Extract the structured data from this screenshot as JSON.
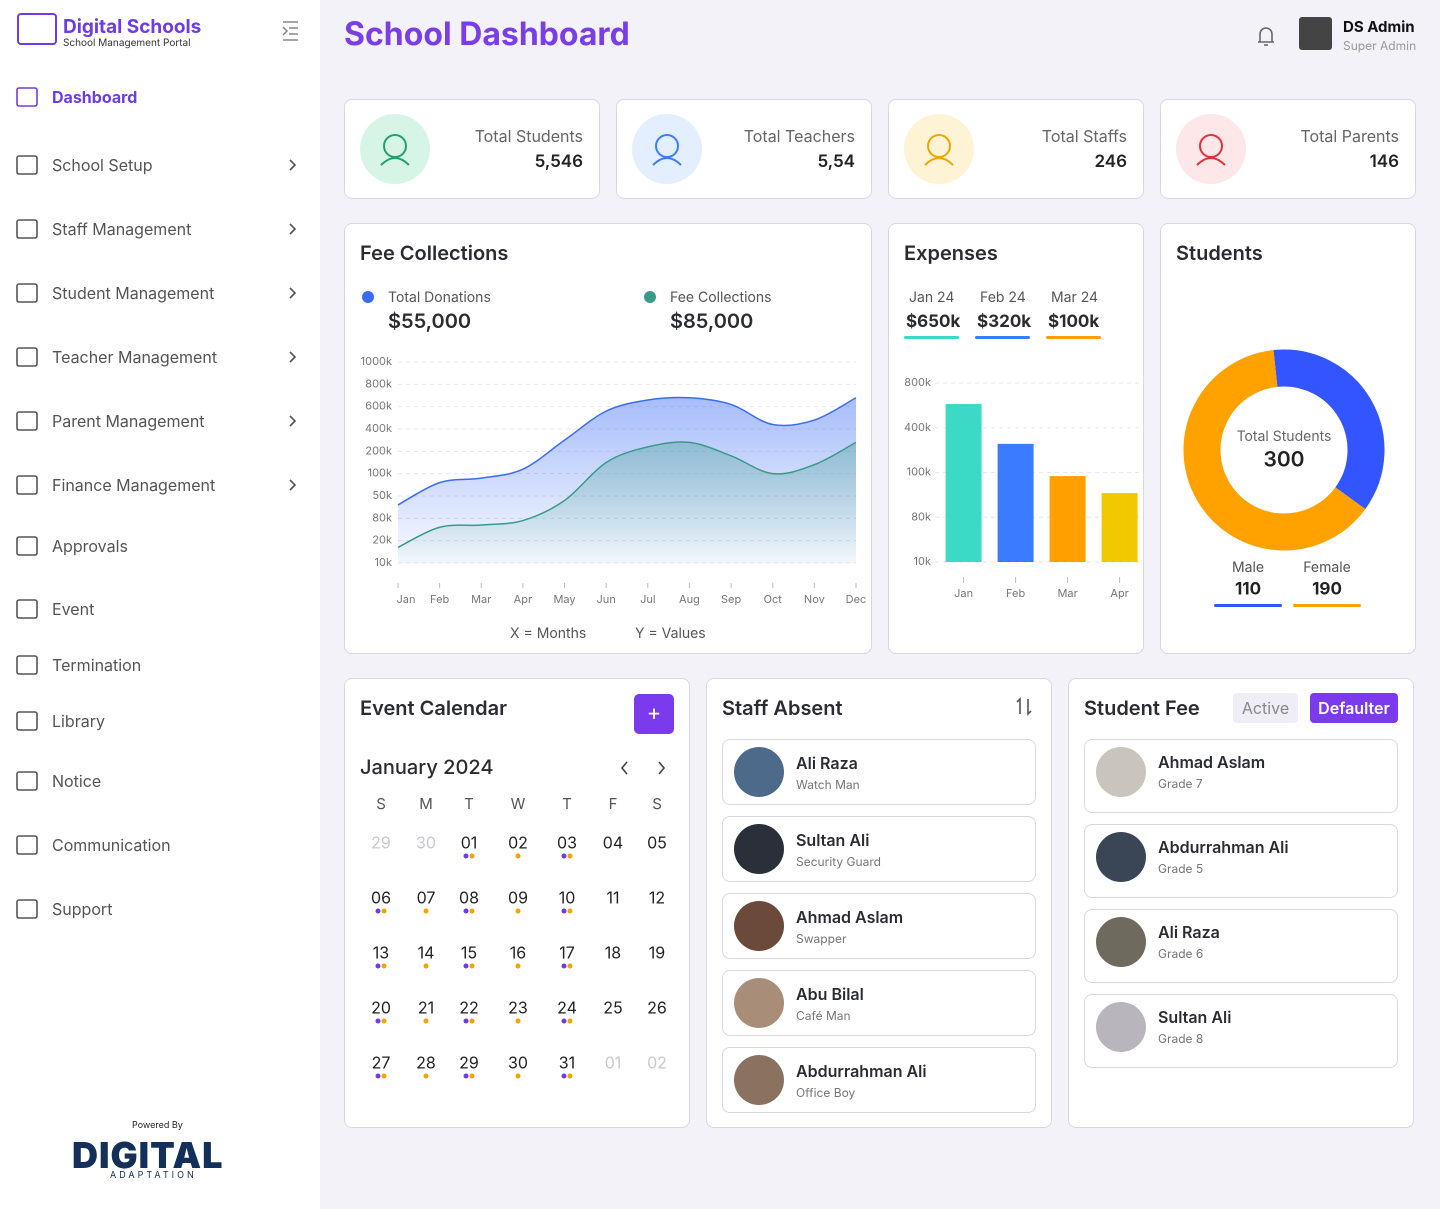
{
  "sidebar": {
    "brand": "Digital Schools",
    "tagline": "School Management Portal",
    "menu": [
      {
        "label": "Dashboard",
        "active": true
      },
      {
        "label": "School Setup",
        "submenu": true
      },
      {
        "label": "Staff Management",
        "submenu": true
      },
      {
        "label": "Student Management",
        "submenu": true
      },
      {
        "label": "Teacher Management",
        "submenu": true
      },
      {
        "label": "Parent Management",
        "submenu": true
      },
      {
        "label": "Finance Management",
        "submenu": true
      },
      {
        "label": "Approvals"
      },
      {
        "label": "Event"
      },
      {
        "label": "Termination"
      },
      {
        "label": "Library"
      },
      {
        "label": "Notice"
      },
      {
        "label": "Communication"
      },
      {
        "label": "Support"
      }
    ],
    "powered_by": "Powered By",
    "footer_logo": "DIGITAL",
    "footer_sub": "ADAPTATION"
  },
  "header": {
    "title": "School Dashboard",
    "user": "DS Admin",
    "role": "Super Admin"
  },
  "stats": [
    {
      "label": "Total Students",
      "value": "5,546",
      "color": "#22a06b",
      "bg": "#d6f5e6"
    },
    {
      "label": "Total Teachers",
      "value": "5,54",
      "color": "#3b7cff",
      "bg": "#e3efff"
    },
    {
      "label": "Total Staffs",
      "value": "246",
      "color": "#f0a500",
      "bg": "#fff3d6"
    },
    {
      "label": "Total Parents",
      "value": "146",
      "color": "#e5303a",
      "bg": "#fde7e8"
    }
  ],
  "fee_chart": {
    "type": "area",
    "title": "Fee Collections",
    "categories": [
      "Jan",
      "Feb",
      "Mar",
      "Apr",
      "May",
      "Jun",
      "Jul",
      "Aug",
      "Sep",
      "Oct",
      "Nov",
      "Dec"
    ],
    "series": [
      {
        "name": "Total Donations",
        "total": "$55,000",
        "color": "#3b6cf5",
        "values": [
          2.6,
          3.6,
          3.8,
          4.2,
          5.5,
          6.8,
          7.3,
          7.4,
          7.1,
          6.2,
          6.4,
          7.4
        ]
      },
      {
        "name": "Fee Collections",
        "total": "$85,000",
        "color": "#3a9a8a",
        "values": [
          0.7,
          1.6,
          1.7,
          1.9,
          2.8,
          4.5,
          5.2,
          5.4,
          4.8,
          4.0,
          4.4,
          5.4
        ]
      }
    ],
    "ylim": [
      0,
      9
    ],
    "yticks": [
      {
        "value": 0,
        "label": "10k"
      },
      {
        "value": 1,
        "label": "20k"
      },
      {
        "value": 2,
        "label": "80k"
      },
      {
        "value": 3,
        "label": "50k"
      },
      {
        "value": 4,
        "label": "100k"
      },
      {
        "value": 5,
        "label": "200k"
      },
      {
        "value": 6,
        "label": "400k"
      },
      {
        "value": 7,
        "label": "600k"
      },
      {
        "value": 8,
        "label": "800k"
      },
      {
        "value": 9,
        "label": "1000k"
      }
    ],
    "grid": true,
    "xlabel": "X = Months",
    "ylabel": "Y = Values"
  },
  "expenses": {
    "type": "bar",
    "title": "Expenses",
    "summary": [
      {
        "month": "Jan 24",
        "amount": "$650k",
        "color": "#3dd9c7"
      },
      {
        "month": "Feb 24",
        "amount": "$320k",
        "color": "#3b7cff"
      },
      {
        "month": "Mar 24",
        "amount": "$100k",
        "color": "#ffa000"
      }
    ],
    "categories": [
      "Jan",
      "Feb",
      "Mar",
      "Apr"
    ],
    "values": [
      3.53,
      2.64,
      1.92,
      1.54
    ],
    "colors": [
      "#3dd9c7",
      "#3b7cff",
      "#ffa000",
      "#f2c800"
    ],
    "ylim": [
      0,
      4
    ],
    "yticks": [
      {
        "value": 0,
        "label": "10k"
      },
      {
        "value": 1,
        "label": "80k"
      },
      {
        "value": 2,
        "label": "100k"
      },
      {
        "value": 3,
        "label": "400k"
      },
      {
        "value": 4,
        "label": "800k"
      }
    ],
    "grid": true
  },
  "students": {
    "type": "donut",
    "title": "Students",
    "center_label": "Total Students",
    "total": 300,
    "series": [
      {
        "name": "Male",
        "value": 110,
        "color": "#3355ff"
      },
      {
        "name": "Female",
        "value": 190,
        "color": "#ffa200"
      }
    ]
  },
  "calendar": {
    "title": "Event Calendar",
    "add": "+",
    "month": "January 2024",
    "weekdays": [
      "S",
      "M",
      "T",
      "W",
      "T",
      "F",
      "S"
    ],
    "days": [
      {
        "d": "29",
        "muted": true
      },
      {
        "d": "30",
        "muted": true
      },
      {
        "d": "01",
        "dots": 2
      },
      {
        "d": "02",
        "dots": 1
      },
      {
        "d": "03",
        "dots": 2
      },
      {
        "d": "04"
      },
      {
        "d": "05"
      },
      {
        "d": "06",
        "dots": 2
      },
      {
        "d": "07",
        "dots": 1
      },
      {
        "d": "08",
        "dots": 2
      },
      {
        "d": "09",
        "dots": 1
      },
      {
        "d": "10",
        "dots": 2
      },
      {
        "d": "11"
      },
      {
        "d": "12"
      },
      {
        "d": "13",
        "dots": 2
      },
      {
        "d": "14",
        "dots": 1
      },
      {
        "d": "15",
        "dots": 2
      },
      {
        "d": "16",
        "dots": 1
      },
      {
        "d": "17",
        "dots": 2
      },
      {
        "d": "18"
      },
      {
        "d": "19"
      },
      {
        "d": "20",
        "dots": 2
      },
      {
        "d": "21",
        "dots": 1
      },
      {
        "d": "22",
        "dots": 2
      },
      {
        "d": "23",
        "dots": 1
      },
      {
        "d": "24",
        "dots": 2
      },
      {
        "d": "25"
      },
      {
        "d": "26"
      },
      {
        "d": "27",
        "dots": 2
      },
      {
        "d": "28",
        "dots": 1
      },
      {
        "d": "29",
        "dots": 2
      },
      {
        "d": "30",
        "dots": 1
      },
      {
        "d": "31",
        "dots": 2
      },
      {
        "d": "01",
        "muted": true
      },
      {
        "d": "02",
        "muted": true
      }
    ]
  },
  "staff_absent": {
    "title": "Staff Absent",
    "items": [
      {
        "name": "Ali Raza",
        "role": "Watch Man"
      },
      {
        "name": "Sultan Ali",
        "role": "Security Guard"
      },
      {
        "name": "Ahmad Aslam",
        "role": "Swapper"
      },
      {
        "name": "Abu Bilal",
        "role": "Café Man"
      },
      {
        "name": "Abdurrahman Ali",
        "role": "Office Boy"
      }
    ]
  },
  "student_fee": {
    "title": "Student Fee",
    "tabs": [
      "Active",
      "Defaulter"
    ],
    "items": [
      {
        "name": "Ahmad Aslam",
        "grade": "Grade 7"
      },
      {
        "name": "Abdurrahman Ali",
        "grade": "Grade 5"
      },
      {
        "name": "Ali Raza",
        "grade": "Grade 6"
      },
      {
        "name": "Sultan Ali",
        "grade": "Grade 8"
      }
    ]
  }
}
